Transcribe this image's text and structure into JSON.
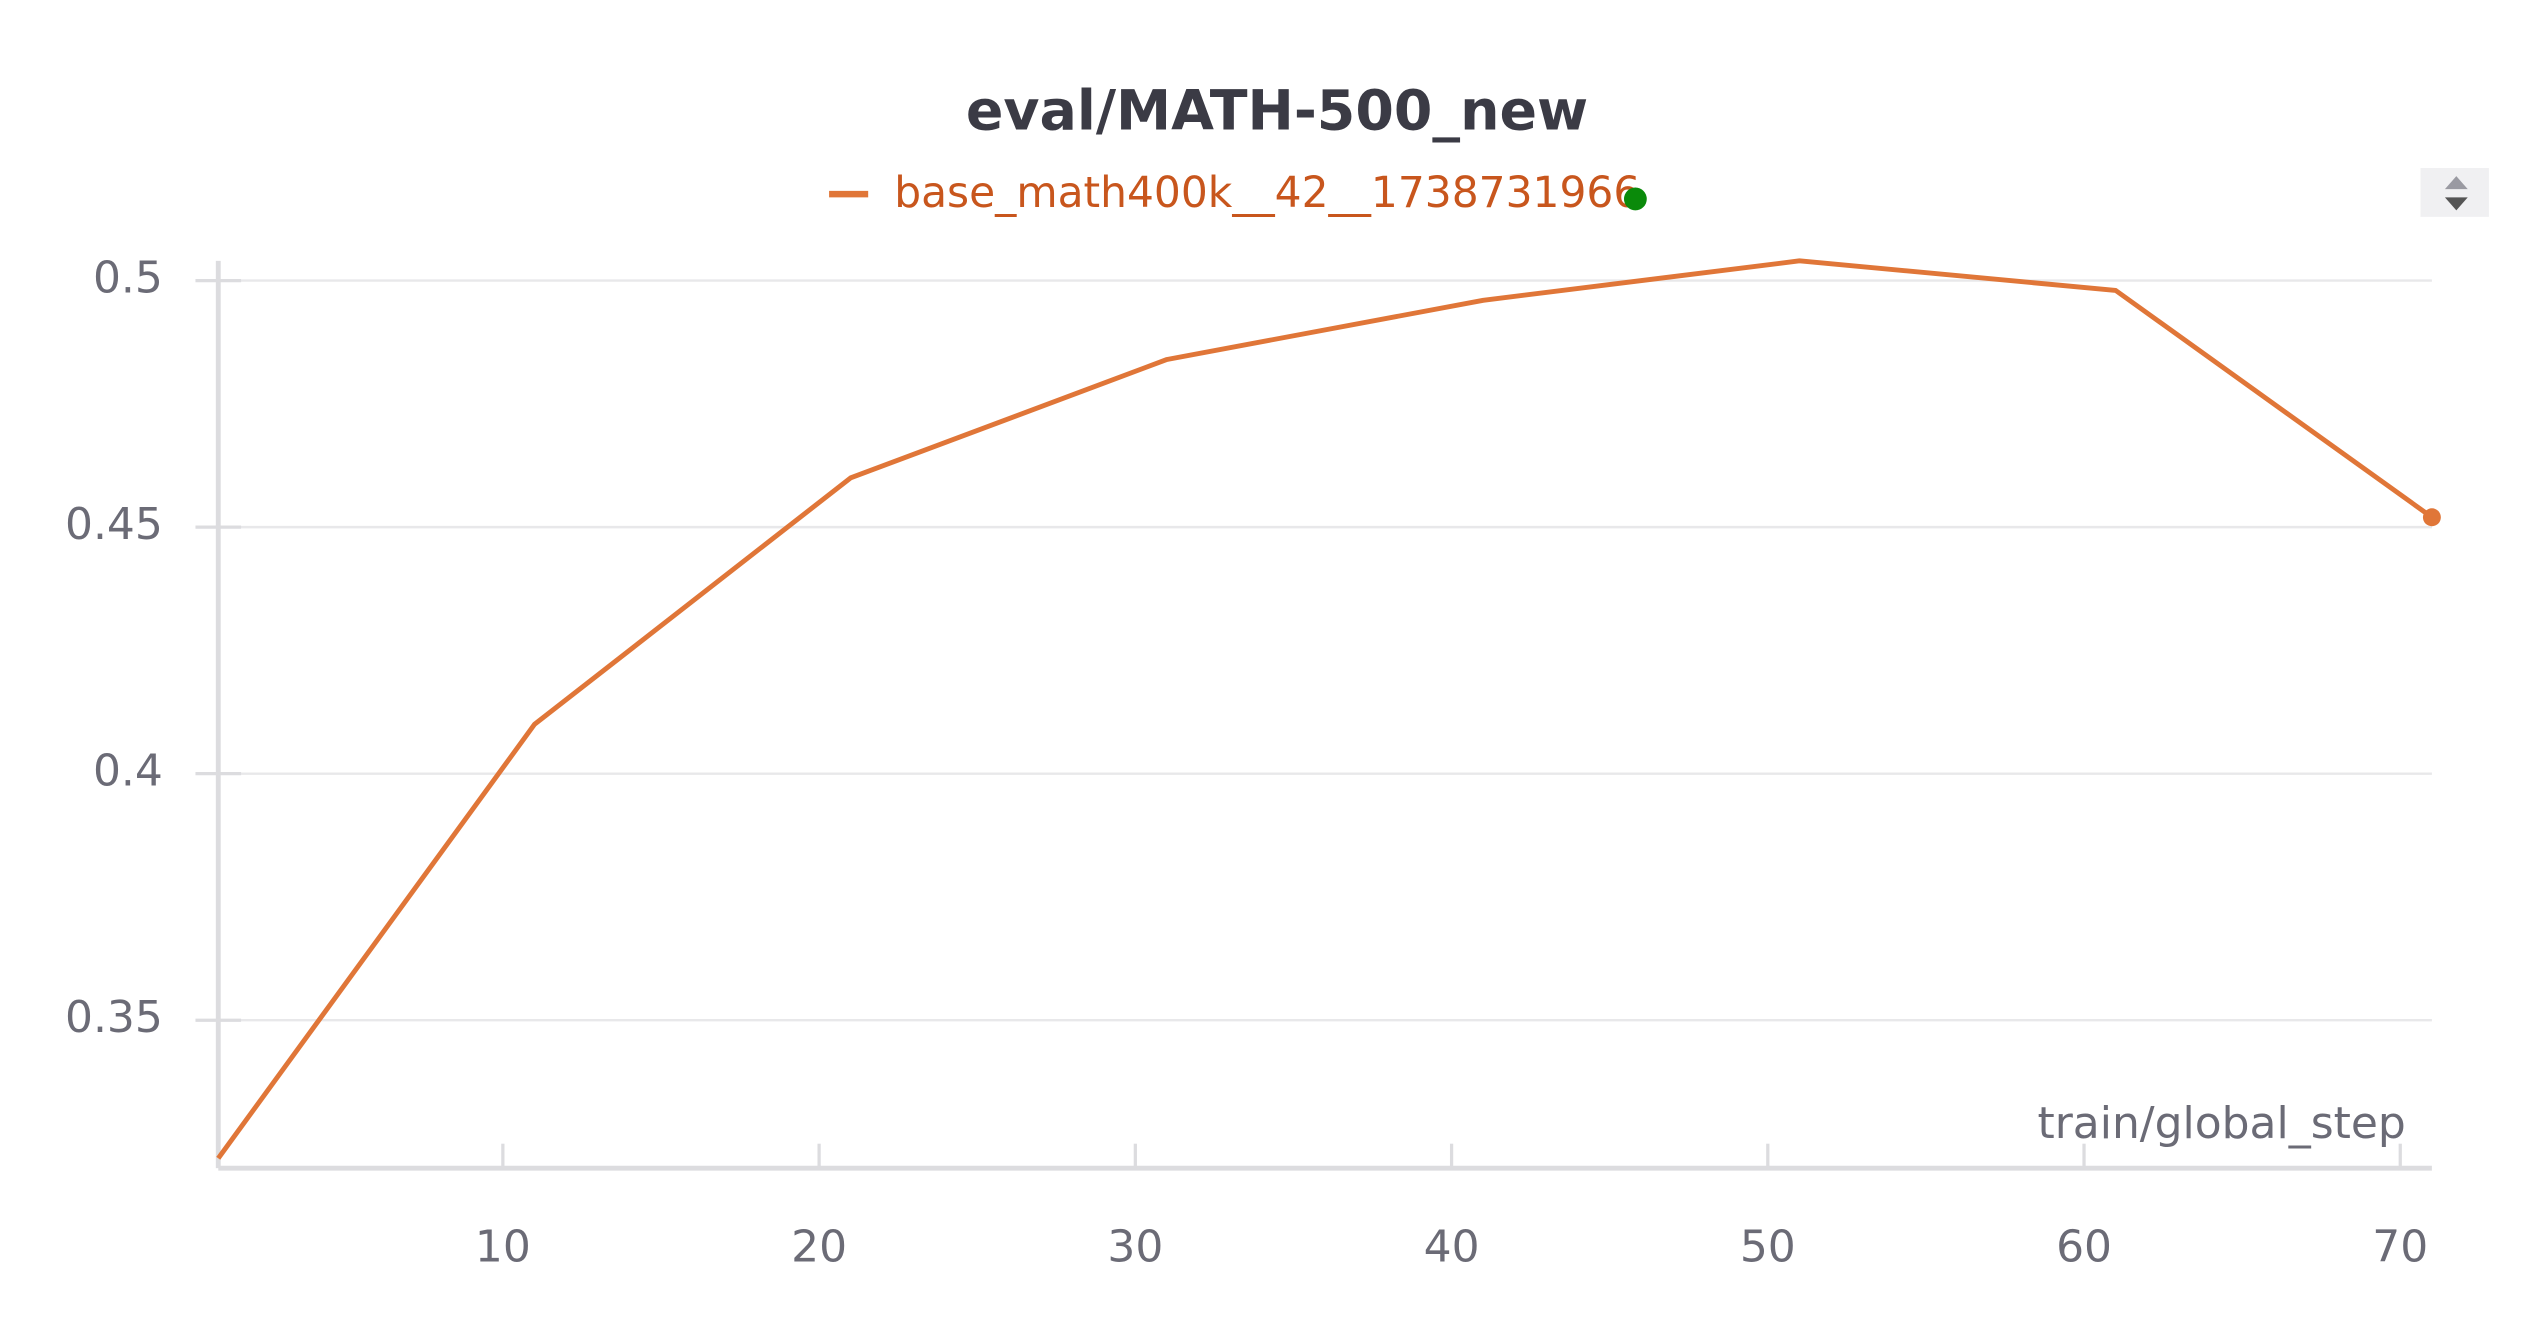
{
  "chart_data": {
    "type": "line",
    "title": "eval/MATH-500_new",
    "x_label": "train/global_step",
    "x": [
      1,
      11,
      21,
      31,
      41,
      51,
      61,
      71
    ],
    "series": [
      {
        "name": "base_math400k__42__1738731966",
        "color": "#e07638",
        "values": [
          0.322,
          0.41,
          0.46,
          0.484,
          0.496,
          0.504,
          0.498,
          0.452
        ]
      }
    ],
    "xlim": [
      1,
      71
    ],
    "xticks": [
      10,
      20,
      30,
      40,
      50,
      60,
      70
    ],
    "ylim": [
      0.32,
      0.504
    ],
    "yticks": [
      0.35,
      0.4,
      0.45,
      0.5
    ],
    "grid": true
  }
}
